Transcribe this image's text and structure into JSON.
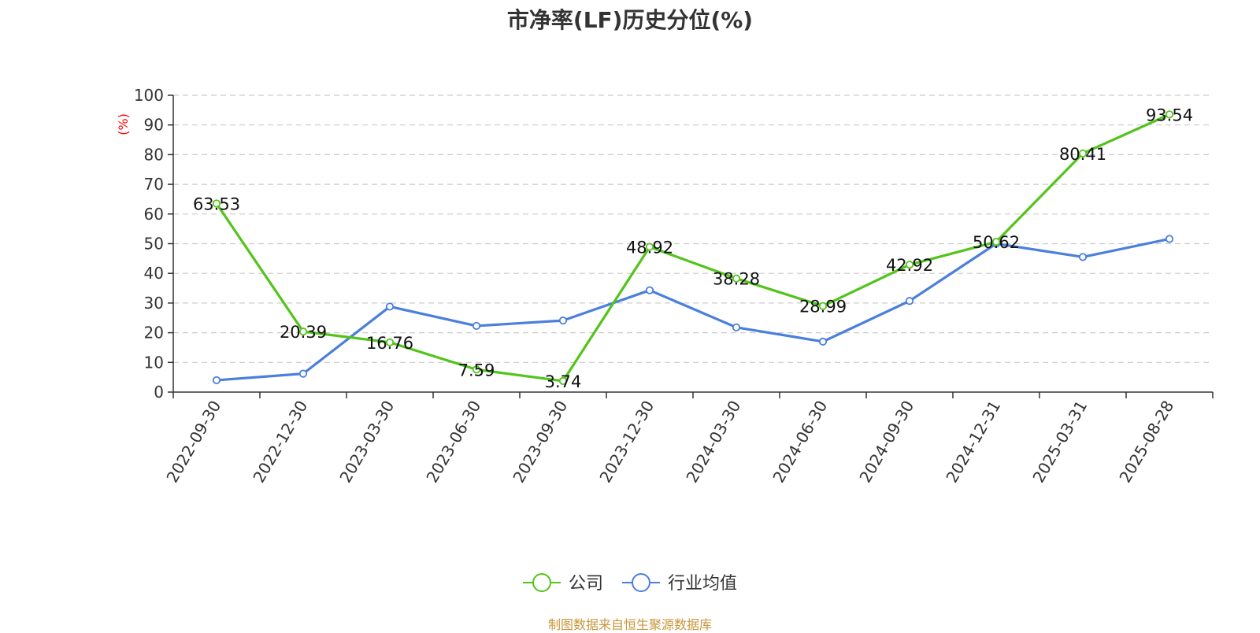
{
  "page": {
    "title": "市净率(LF)历史分位(%)",
    "source_note": "制图数据来自恒生聚源数据库"
  },
  "colors": {
    "company": "#52c41a",
    "industry": "#4a7fdc",
    "axis": "#333333",
    "grid": "#cccccc",
    "ylabel": "#ff0000",
    "source": "#c8963a"
  },
  "chart_data": {
    "type": "line",
    "title": "市净率(LF)历史分位(%)",
    "ylabel": "(%)",
    "xlabel": "",
    "categories": [
      "2022-09-30",
      "2022-12-30",
      "2023-03-30",
      "2023-06-30",
      "2023-09-30",
      "2023-12-30",
      "2024-03-30",
      "2024-06-30",
      "2024-09-30",
      "2024-12-31",
      "2025-03-31",
      "2025-08-28"
    ],
    "ylim": [
      0,
      100
    ],
    "yticks": [
      0,
      10,
      20,
      30,
      40,
      50,
      60,
      70,
      80,
      90,
      100
    ],
    "grid": true,
    "legend_position": "bottom-center",
    "series": [
      {
        "name": "公司",
        "values": [
          63.53,
          20.39,
          16.76,
          7.59,
          3.74,
          48.92,
          38.28,
          28.99,
          42.92,
          50.62,
          80.41,
          93.54
        ],
        "labels": [
          "63.53",
          "20.39",
          "16.76",
          "7.59",
          "3.74",
          "48.92",
          "38.28",
          "28.99",
          "42.92",
          "50.62",
          "80.41",
          "93.54"
        ]
      },
      {
        "name": "行业均值",
        "values": [
          4.0,
          6.2,
          28.8,
          22.3,
          24.1,
          34.3,
          21.8,
          17.0,
          30.7,
          50.0,
          45.5,
          51.6
        ]
      }
    ]
  }
}
